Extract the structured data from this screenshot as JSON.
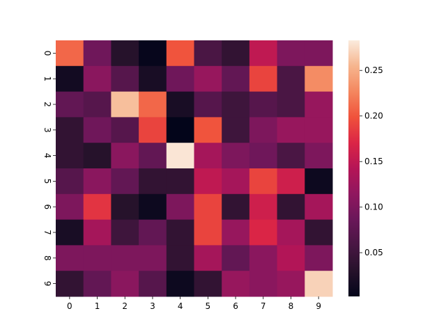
{
  "chart_data": {
    "type": "heatmap",
    "title": "",
    "xlabel": "",
    "ylabel": "",
    "x": [
      "0",
      "1",
      "2",
      "3",
      "4",
      "5",
      "6",
      "7",
      "8",
      "9"
    ],
    "y": [
      "0",
      "1",
      "2",
      "3",
      "4",
      "5",
      "6",
      "7",
      "8",
      "9"
    ],
    "values": [
      [
        0.21,
        0.09,
        0.03,
        0.005,
        0.2,
        0.06,
        0.04,
        0.15,
        0.1,
        0.1
      ],
      [
        0.015,
        0.11,
        0.07,
        0.02,
        0.09,
        0.12,
        0.08,
        0.19,
        0.06,
        0.23
      ],
      [
        0.08,
        0.07,
        0.26,
        0.21,
        0.02,
        0.07,
        0.05,
        0.07,
        0.06,
        0.12
      ],
      [
        0.04,
        0.09,
        0.07,
        0.19,
        0.002,
        0.2,
        0.05,
        0.1,
        0.12,
        0.12
      ],
      [
        0.04,
        0.03,
        0.11,
        0.08,
        0.28,
        0.13,
        0.1,
        0.09,
        0.06,
        0.1
      ],
      [
        0.07,
        0.11,
        0.08,
        0.04,
        0.04,
        0.15,
        0.13,
        0.19,
        0.16,
        0.01
      ],
      [
        0.1,
        0.18,
        0.03,
        0.01,
        0.1,
        0.19,
        0.04,
        0.16,
        0.04,
        0.13
      ],
      [
        0.02,
        0.13,
        0.05,
        0.08,
        0.04,
        0.19,
        0.12,
        0.17,
        0.13,
        0.04
      ],
      [
        0.1,
        0.1,
        0.1,
        0.1,
        0.04,
        0.13,
        0.08,
        0.11,
        0.14,
        0.1
      ],
      [
        0.04,
        0.08,
        0.11,
        0.07,
        0.01,
        0.04,
        0.12,
        0.11,
        0.12,
        0.27
      ]
    ],
    "colorscale": "rocket",
    "colorbar": {
      "ticks": [
        0.05,
        0.1,
        0.15,
        0.2,
        0.25
      ],
      "tick_labels": [
        "0.05",
        "0.10",
        "0.15",
        "0.20",
        "0.25"
      ],
      "range": [
        0.002,
        0.283
      ]
    },
    "grid": false,
    "legend": "none"
  }
}
